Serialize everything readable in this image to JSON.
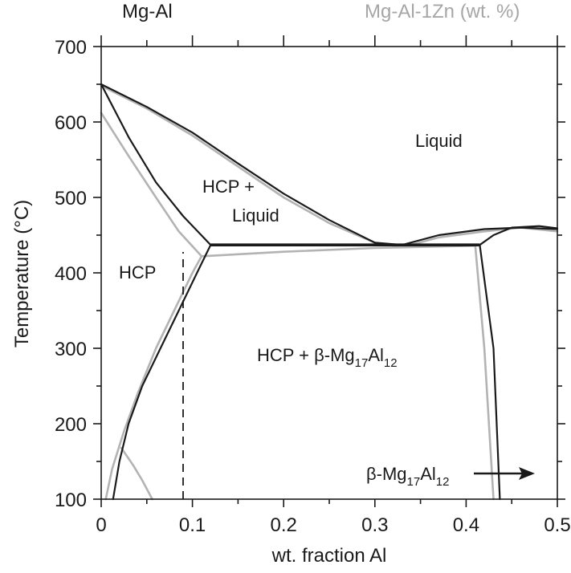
{
  "header": {
    "left_label": "Mg-Al",
    "right_label": "Mg-Al-1Zn (wt. %)"
  },
  "colors": {
    "mg_al": "#1a1a1a",
    "mg_al_1zn": "#b3b3b3"
  },
  "chart_data": {
    "type": "line",
    "xlabel": "wt. fraction Al",
    "ylabel": "Temperature (°C)",
    "xlim": [
      0,
      0.5
    ],
    "ylim": [
      100,
      700
    ],
    "x_ticks": [
      0,
      0.1,
      0.2,
      0.3,
      0.4,
      0.5
    ],
    "x_tick_labels": [
      "0",
      "0.1",
      "0.2",
      "0.3",
      "0.4",
      "0.5"
    ],
    "y_ticks": [
      100,
      200,
      300,
      400,
      500,
      600,
      700
    ],
    "y_tick_labels": [
      "100",
      "200",
      "300",
      "400",
      "500",
      "600",
      "700"
    ],
    "grid": false,
    "series": [
      {
        "name": "Mg-Al",
        "color": "#1a1a1a",
        "lines": [
          {
            "role": "liquidus",
            "points": [
              [
                0,
                650
              ],
              [
                0.05,
                620
              ],
              [
                0.1,
                586
              ],
              [
                0.15,
                545
              ],
              [
                0.2,
                505
              ],
              [
                0.25,
                470
              ],
              [
                0.3,
                440
              ],
              [
                0.33,
                437
              ]
            ]
          },
          {
            "role": "solidus",
            "points": [
              [
                0,
                650
              ],
              [
                0.03,
                580
              ],
              [
                0.06,
                520
              ],
              [
                0.09,
                475
              ],
              [
                0.12,
                437
              ]
            ]
          },
          {
            "role": "eutectic",
            "points": [
              [
                0.12,
                437
              ],
              [
                0.415,
                437
              ]
            ]
          },
          {
            "role": "solvus",
            "points": [
              [
                0.12,
                437
              ],
              [
                0.105,
                400
              ],
              [
                0.085,
                350
              ],
              [
                0.065,
                300
              ],
              [
                0.045,
                250
              ],
              [
                0.03,
                200
              ],
              [
                0.02,
                150
              ],
              [
                0.013,
                100
              ]
            ]
          },
          {
            "role": "beta-lower",
            "points": [
              [
                0.33,
                437
              ],
              [
                0.37,
                450
              ],
              [
                0.42,
                458
              ],
              [
                0.46,
                460
              ],
              [
                0.5,
                458
              ]
            ]
          },
          {
            "role": "beta-left-boundary",
            "points": [
              [
                0.415,
                437
              ],
              [
                0.43,
                300
              ],
              [
                0.437,
                100
              ]
            ]
          },
          {
            "role": "beta-upper",
            "points": [
              [
                0.415,
                437
              ],
              [
                0.43,
                450
              ],
              [
                0.45,
                460
              ],
              [
                0.48,
                462
              ],
              [
                0.5,
                459
              ]
            ]
          }
        ]
      },
      {
        "name": "Mg-Al-1Zn (wt. %)",
        "color": "#b3b3b3",
        "lines": [
          {
            "role": "liquidus",
            "points": [
              [
                0,
                648
              ],
              [
                0.05,
                618
              ],
              [
                0.1,
                582
              ],
              [
                0.15,
                541
              ],
              [
                0.2,
                500
              ],
              [
                0.25,
                466
              ],
              [
                0.3,
                440
              ],
              [
                0.33,
                434
              ]
            ]
          },
          {
            "role": "solidus",
            "points": [
              [
                0,
                612
              ],
              [
                0.03,
                555
              ],
              [
                0.06,
                500
              ],
              [
                0.085,
                455
              ],
              [
                0.11,
                422
              ]
            ]
          },
          {
            "role": "three-phase",
            "points": [
              [
                0.11,
                422
              ],
              [
                0.2,
                428
              ],
              [
                0.3,
                433
              ],
              [
                0.41,
                436
              ]
            ]
          },
          {
            "role": "solvus",
            "points": [
              [
                0.11,
                422
              ],
              [
                0.1,
                400
              ],
              [
                0.08,
                350
              ],
              [
                0.06,
                300
              ],
              [
                0.04,
                240
              ],
              [
                0.025,
                190
              ],
              [
                0.012,
                140
              ],
              [
                0.005,
                100
              ]
            ]
          },
          {
            "role": "secondary",
            "points": [
              [
                0.022,
                168
              ],
              [
                0.035,
                145
              ],
              [
                0.045,
                125
              ],
              [
                0.056,
                100
              ]
            ]
          },
          {
            "role": "beta-lower",
            "points": [
              [
                0.33,
                434
              ],
              [
                0.37,
                447
              ],
              [
                0.42,
                455
              ],
              [
                0.46,
                460
              ],
              [
                0.5,
                455
              ]
            ]
          },
          {
            "role": "beta-left-boundary",
            "points": [
              [
                0.41,
                436
              ],
              [
                0.42,
                300
              ],
              [
                0.43,
                100
              ]
            ]
          }
        ]
      }
    ],
    "annotations": [
      {
        "text": "Liquid",
        "x": 0.38,
        "y": 588
      },
      {
        "text_line1": "HCP +",
        "text_line2": "Liquid",
        "x": 0.17,
        "y": 512
      },
      {
        "text": "HCP",
        "x": 0.043,
        "y": 400
      },
      {
        "text_main": "HCP + β-Mg",
        "sub1": "17",
        "mid": "Al",
        "sub2": "12",
        "x": 0.27,
        "y": 300
      },
      {
        "text_main": "β-Mg",
        "sub1": "17",
        "mid": "Al",
        "sub2": "12",
        "x": 0.375,
        "y": 122
      }
    ],
    "reference_line": {
      "x": 0.09,
      "y_from": 100,
      "y_to": 435
    }
  }
}
